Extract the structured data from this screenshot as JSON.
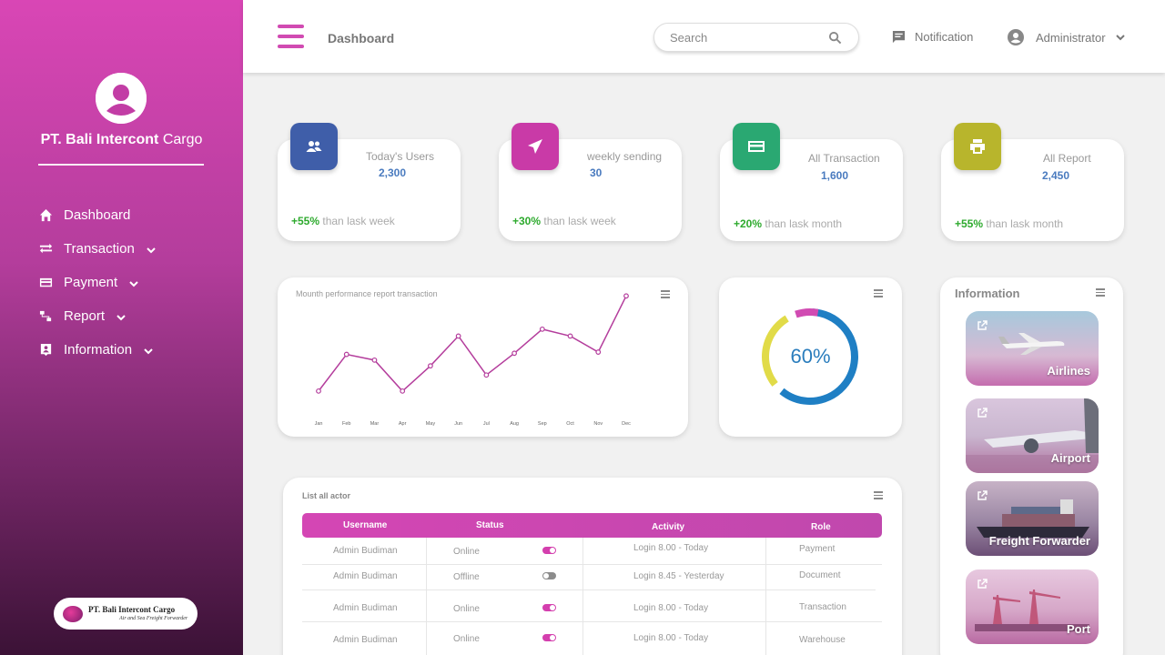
{
  "sidebar": {
    "company_bold": "PT. Bali Intercont",
    "company_rest": "Cargo",
    "nav": [
      {
        "label": "Dashboard",
        "icon": "home-icon"
      },
      {
        "label": "Transaction",
        "icon": "transfer-icon"
      },
      {
        "label": "Payment",
        "icon": "card-icon"
      },
      {
        "label": "Report",
        "icon": "sitemap-icon"
      },
      {
        "label": "Information",
        "icon": "info-icon"
      }
    ],
    "logo": {
      "title": "PT. Bali Intercont Cargo",
      "tagline": "Air and Sea Freight Forwarder"
    }
  },
  "header": {
    "title": "Dashboard",
    "search_placeholder": "Search",
    "notification": "Notification",
    "user": "Administrator"
  },
  "stats": [
    {
      "label": "Today's Users",
      "value": "2,300",
      "change": "+55%",
      "period": "than lask week",
      "color": "#3f5ea9",
      "icon": "users-icon"
    },
    {
      "label": "weekly sending",
      "value": "30",
      "change": "+30%",
      "period": "than lask week",
      "color": "#c93aa7",
      "icon": "send-icon"
    },
    {
      "label": "All Transaction",
      "value": "1,600",
      "change": "+20%",
      "period": "than lask month",
      "color": "#2aa872",
      "icon": "credit-card-icon"
    },
    {
      "label": "All Report",
      "value": "2,450",
      "change": "+55%",
      "period": "than lask month",
      "color": "#b8b52c",
      "icon": "printer-icon"
    }
  ],
  "chart_data": {
    "type": "line",
    "title": "Mounth performance report transaction",
    "categories": [
      "Jan",
      "Feb",
      "Mar",
      "Apr",
      "May",
      "Jun",
      "Jul",
      "Aug",
      "Sep",
      "Oct",
      "Nov",
      "Dec"
    ],
    "values": [
      12,
      44,
      39,
      12,
      34,
      60,
      26,
      45,
      66,
      60,
      46,
      95
    ],
    "ylim": [
      0,
      100
    ],
    "color": "#b43d9c",
    "grid": false
  },
  "donut": {
    "value_label": "60%",
    "segments": [
      {
        "value": 60,
        "color": "#1f7fc4"
      },
      {
        "value": 27,
        "color": "#e1db48"
      },
      {
        "value": 8,
        "color": "#d14bb2"
      }
    ]
  },
  "information": {
    "title": "Information",
    "items": [
      "Airlines",
      "Airport",
      "Freight Forwarder",
      "Port"
    ]
  },
  "table": {
    "title": "List all actor",
    "headers": [
      "Username",
      "Status",
      "Activity",
      "Role"
    ],
    "rows": [
      {
        "username": "Admin Budiman",
        "status": "Online",
        "on": true,
        "activity": "Login 8.00 - Today",
        "role": "Payment"
      },
      {
        "username": "Admin Budiman",
        "status": "Offline",
        "on": false,
        "activity": "Login 8.45 -  Yesterday",
        "role": "Document"
      },
      {
        "username": "Admin Budiman",
        "status": "Online",
        "on": true,
        "activity": "Login 8.00 - Today",
        "role": "Transaction"
      },
      {
        "username": "Admin Budiman",
        "status": "Online",
        "on": true,
        "activity": "Login 8.00 - Today",
        "role": "Warehouse"
      }
    ]
  }
}
